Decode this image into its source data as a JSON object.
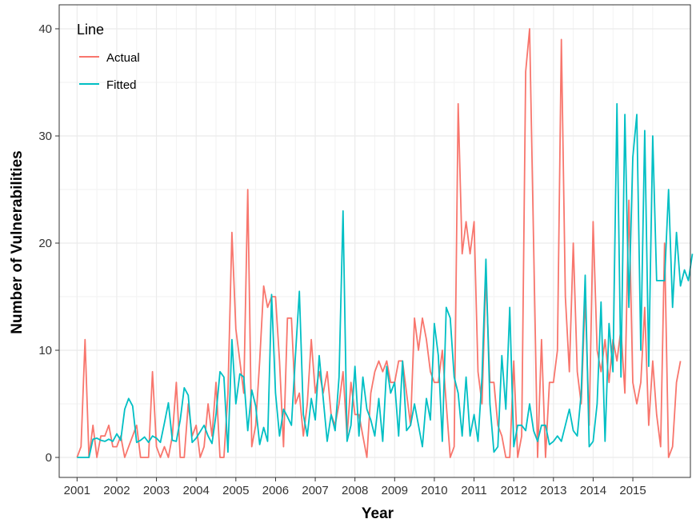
{
  "chart_data": {
    "type": "line",
    "title": "",
    "xlabel": "Year",
    "ylabel": "Number of Vulnerabilities",
    "ylim": [
      0,
      40
    ],
    "xlim": [
      2000.55,
      2016.45
    ],
    "x_ticks": [
      2001,
      2002,
      2003,
      2004,
      2005,
      2006,
      2007,
      2008,
      2009,
      2010,
      2011,
      2012,
      2013,
      2014,
      2015
    ],
    "x_tick_labels": [
      "2001",
      "2002",
      "2003",
      "2004",
      "2005",
      "2006",
      "2007",
      "2008",
      "2009",
      "2010",
      "2011",
      "2012",
      "2013",
      "2014",
      "2015"
    ],
    "y_ticks": [
      0,
      10,
      20,
      30,
      40
    ],
    "y_tick_labels": [
      "0",
      "10",
      "20",
      "30",
      "40"
    ],
    "grid": true,
    "legend": {
      "title": "Line",
      "position": "top-left",
      "entries": [
        "Actual",
        "Fitted"
      ]
    },
    "series": [
      {
        "name": "Actual",
        "color": "#F8766D",
        "points": [
          [
            2001.0,
            0
          ],
          [
            2001.1,
            1
          ],
          [
            2001.2,
            11
          ],
          [
            2001.3,
            0
          ],
          [
            2001.4,
            3
          ],
          [
            2001.5,
            0
          ],
          [
            2001.6,
            2
          ],
          [
            2001.7,
            2
          ],
          [
            2001.8,
            3
          ],
          [
            2001.9,
            1
          ],
          [
            2002.0,
            1
          ],
          [
            2002.1,
            2
          ],
          [
            2002.2,
            0
          ],
          [
            2002.3,
            1
          ],
          [
            2002.4,
            2
          ],
          [
            2002.5,
            3
          ],
          [
            2002.6,
            0
          ],
          [
            2002.7,
            0
          ],
          [
            2002.8,
            0
          ],
          [
            2002.9,
            8
          ],
          [
            2003.0,
            1
          ],
          [
            2003.1,
            0
          ],
          [
            2003.2,
            1
          ],
          [
            2003.3,
            0
          ],
          [
            2003.4,
            2
          ],
          [
            2003.5,
            7
          ],
          [
            2003.6,
            0
          ],
          [
            2003.7,
            0
          ],
          [
            2003.8,
            5
          ],
          [
            2003.9,
            2
          ],
          [
            2004.0,
            3
          ],
          [
            2004.1,
            0
          ],
          [
            2004.2,
            1
          ],
          [
            2004.3,
            5
          ],
          [
            2004.4,
            2
          ],
          [
            2004.5,
            7
          ],
          [
            2004.6,
            0
          ],
          [
            2004.7,
            0
          ],
          [
            2004.8,
            6
          ],
          [
            2004.9,
            21
          ],
          [
            2005.0,
            12
          ],
          [
            2005.1,
            9
          ],
          [
            2005.2,
            6
          ],
          [
            2005.3,
            25
          ],
          [
            2005.4,
            1
          ],
          [
            2005.5,
            3
          ],
          [
            2005.6,
            9
          ],
          [
            2005.7,
            16
          ],
          [
            2005.8,
            14
          ],
          [
            2005.9,
            15
          ],
          [
            2006.0,
            15
          ],
          [
            2006.1,
            9
          ],
          [
            2006.2,
            1
          ],
          [
            2006.3,
            13
          ],
          [
            2006.4,
            13
          ],
          [
            2006.5,
            5
          ],
          [
            2006.6,
            6
          ],
          [
            2006.7,
            2
          ],
          [
            2006.8,
            5
          ],
          [
            2006.9,
            11
          ],
          [
            2007.0,
            6
          ],
          [
            2007.1,
            8
          ],
          [
            2007.2,
            6
          ],
          [
            2007.3,
            8
          ],
          [
            2007.4,
            4
          ],
          [
            2007.5,
            3
          ],
          [
            2007.6,
            5
          ],
          [
            2007.7,
            8
          ],
          [
            2007.8,
            2
          ],
          [
            2007.9,
            7
          ],
          [
            2008.0,
            4
          ],
          [
            2008.1,
            4
          ],
          [
            2008.2,
            2
          ],
          [
            2008.3,
            0
          ],
          [
            2008.4,
            6
          ],
          [
            2008.5,
            8
          ],
          [
            2008.6,
            9
          ],
          [
            2008.7,
            8
          ],
          [
            2008.8,
            9
          ],
          [
            2008.9,
            7
          ],
          [
            2009.0,
            7
          ],
          [
            2009.1,
            9
          ],
          [
            2009.2,
            9
          ],
          [
            2009.3,
            6
          ],
          [
            2009.4,
            3
          ],
          [
            2009.5,
            13
          ],
          [
            2009.6,
            10
          ],
          [
            2009.7,
            13
          ],
          [
            2009.8,
            11
          ],
          [
            2009.9,
            8
          ],
          [
            2010.0,
            7
          ],
          [
            2010.1,
            7
          ],
          [
            2010.2,
            10
          ],
          [
            2010.3,
            5
          ],
          [
            2010.4,
            0
          ],
          [
            2010.5,
            1
          ],
          [
            2010.6,
            33
          ],
          [
            2010.7,
            19
          ],
          [
            2010.8,
            22
          ],
          [
            2010.9,
            19
          ],
          [
            2011.0,
            22
          ],
          [
            2011.1,
            8
          ],
          [
            2011.2,
            5
          ],
          [
            2011.3,
            17
          ],
          [
            2011.4,
            7
          ],
          [
            2011.5,
            7
          ],
          [
            2011.6,
            3
          ],
          [
            2011.7,
            2
          ],
          [
            2011.8,
            0
          ],
          [
            2011.9,
            0
          ],
          [
            2012.0,
            9
          ],
          [
            2012.1,
            0
          ],
          [
            2012.2,
            2
          ],
          [
            2012.3,
            36
          ],
          [
            2012.4,
            40
          ],
          [
            2012.5,
            20
          ],
          [
            2012.6,
            0
          ],
          [
            2012.7,
            11
          ],
          [
            2012.8,
            0
          ],
          [
            2012.9,
            7
          ],
          [
            2013.0,
            7
          ],
          [
            2013.1,
            10
          ],
          [
            2013.2,
            39
          ],
          [
            2013.3,
            15
          ],
          [
            2013.4,
            8
          ],
          [
            2013.5,
            20
          ],
          [
            2013.6,
            8
          ],
          [
            2013.7,
            5
          ],
          [
            2013.8,
            15
          ],
          [
            2013.9,
            3
          ],
          [
            2014.0,
            22
          ],
          [
            2014.1,
            10
          ],
          [
            2014.2,
            8
          ],
          [
            2014.3,
            11
          ],
          [
            2014.4,
            7
          ],
          [
            2014.5,
            11
          ],
          [
            2014.6,
            9
          ],
          [
            2014.7,
            12
          ],
          [
            2014.8,
            6
          ],
          [
            2014.9,
            24
          ],
          [
            2015.0,
            7
          ],
          [
            2015.1,
            5
          ],
          [
            2015.2,
            7
          ],
          [
            2015.3,
            14
          ],
          [
            2015.4,
            3
          ],
          [
            2015.5,
            9
          ],
          [
            2015.6,
            4
          ],
          [
            2015.7,
            1
          ],
          [
            2015.8,
            20
          ],
          [
            2015.9,
            0
          ],
          [
            2016.0,
            1
          ],
          [
            2016.1,
            7
          ],
          [
            2016.2,
            9
          ]
        ]
      },
      {
        "name": "Fitted",
        "color": "#00BFC4",
        "points": [
          [
            2001.0,
            0
          ],
          [
            2001.1,
            0
          ],
          [
            2001.2,
            0
          ],
          [
            2001.3,
            0
          ],
          [
            2001.4,
            1.7
          ],
          [
            2001.5,
            1.8
          ],
          [
            2001.6,
            1.6
          ],
          [
            2001.7,
            1.5
          ],
          [
            2001.8,
            1.7
          ],
          [
            2001.9,
            1.5
          ],
          [
            2002.0,
            2.2
          ],
          [
            2002.1,
            1.6
          ],
          [
            2002.2,
            4.5
          ],
          [
            2002.3,
            5.5
          ],
          [
            2002.4,
            4.8
          ],
          [
            2002.5,
            1.4
          ],
          [
            2002.6,
            1.6
          ],
          [
            2002.7,
            1.9
          ],
          [
            2002.8,
            1.4
          ],
          [
            2002.9,
            2.0
          ],
          [
            2003.0,
            1.8
          ],
          [
            2003.1,
            1.4
          ],
          [
            2003.2,
            3.2
          ],
          [
            2003.3,
            5.1
          ],
          [
            2003.4,
            1.6
          ],
          [
            2003.5,
            1.5
          ],
          [
            2003.6,
            3.5
          ],
          [
            2003.7,
            6.5
          ],
          [
            2003.8,
            5.8
          ],
          [
            2003.9,
            1.4
          ],
          [
            2004.0,
            1.8
          ],
          [
            2004.1,
            2.4
          ],
          [
            2004.2,
            3.0
          ],
          [
            2004.3,
            2.0
          ],
          [
            2004.4,
            1.3
          ],
          [
            2004.5,
            4.0
          ],
          [
            2004.6,
            8.0
          ],
          [
            2004.7,
            7.5
          ],
          [
            2004.8,
            0.5
          ],
          [
            2004.9,
            11.0
          ],
          [
            2005.0,
            5.0
          ],
          [
            2005.1,
            7.8
          ],
          [
            2005.2,
            7.5
          ],
          [
            2005.3,
            2.5
          ],
          [
            2005.4,
            6.3
          ],
          [
            2005.5,
            4.8
          ],
          [
            2005.6,
            1.2
          ],
          [
            2005.7,
            2.8
          ],
          [
            2005.8,
            1.5
          ],
          [
            2005.9,
            15.2
          ],
          [
            2006.0,
            6.0
          ],
          [
            2006.1,
            2.0
          ],
          [
            2006.2,
            4.5
          ],
          [
            2006.3,
            3.8
          ],
          [
            2006.4,
            3.0
          ],
          [
            2006.5,
            9.5
          ],
          [
            2006.6,
            15.5
          ],
          [
            2006.7,
            4.0
          ],
          [
            2006.8,
            2.0
          ],
          [
            2006.9,
            5.5
          ],
          [
            2007.0,
            3.5
          ],
          [
            2007.1,
            9.5
          ],
          [
            2007.2,
            5.5
          ],
          [
            2007.3,
            1.5
          ],
          [
            2007.4,
            4.0
          ],
          [
            2007.5,
            2.5
          ],
          [
            2007.6,
            7.5
          ],
          [
            2007.7,
            23.0
          ],
          [
            2007.8,
            1.5
          ],
          [
            2007.9,
            3.0
          ],
          [
            2008.0,
            8.5
          ],
          [
            2008.1,
            2.0
          ],
          [
            2008.2,
            7.5
          ],
          [
            2008.3,
            4.5
          ],
          [
            2008.4,
            3.5
          ],
          [
            2008.5,
            2.0
          ],
          [
            2008.6,
            5.5
          ],
          [
            2008.7,
            1.5
          ],
          [
            2008.8,
            8.5
          ],
          [
            2008.9,
            6.0
          ],
          [
            2009.0,
            7.0
          ],
          [
            2009.1,
            2.0
          ],
          [
            2009.2,
            9.0
          ],
          [
            2009.3,
            2.5
          ],
          [
            2009.4,
            3.0
          ],
          [
            2009.5,
            5.0
          ],
          [
            2009.6,
            3.0
          ],
          [
            2009.7,
            1.0
          ],
          [
            2009.8,
            5.5
          ],
          [
            2009.9,
            3.5
          ],
          [
            2010.0,
            12.5
          ],
          [
            2010.1,
            9.5
          ],
          [
            2010.2,
            1.5
          ],
          [
            2010.3,
            14.0
          ],
          [
            2010.4,
            13.0
          ],
          [
            2010.5,
            7.5
          ],
          [
            2010.6,
            6.0
          ],
          [
            2010.7,
            2.0
          ],
          [
            2010.8,
            7.5
          ],
          [
            2010.9,
            2.0
          ],
          [
            2011.0,
            4.0
          ],
          [
            2011.1,
            1.5
          ],
          [
            2011.2,
            7.5
          ],
          [
            2011.3,
            18.5
          ],
          [
            2011.4,
            5.0
          ],
          [
            2011.5,
            0.5
          ],
          [
            2011.6,
            1.0
          ],
          [
            2011.7,
            9.5
          ],
          [
            2011.8,
            4.5
          ],
          [
            2011.9,
            14.0
          ],
          [
            2012.0,
            1.0
          ],
          [
            2012.1,
            3.0
          ],
          [
            2012.2,
            3.0
          ],
          [
            2012.3,
            2.5
          ],
          [
            2012.4,
            5.0
          ],
          [
            2012.5,
            2.5
          ],
          [
            2012.6,
            1.5
          ],
          [
            2012.7,
            3.0
          ],
          [
            2012.8,
            3.0
          ],
          [
            2012.9,
            1.2
          ],
          [
            2013.0,
            1.5
          ],
          [
            2013.1,
            2.0
          ],
          [
            2013.2,
            1.5
          ],
          [
            2013.3,
            3.0
          ],
          [
            2013.4,
            4.5
          ],
          [
            2013.5,
            2.5
          ],
          [
            2013.6,
            2.0
          ],
          [
            2013.7,
            6.0
          ],
          [
            2013.8,
            17.0
          ],
          [
            2013.9,
            1.0
          ],
          [
            2014.0,
            1.5
          ],
          [
            2014.1,
            5.0
          ],
          [
            2014.2,
            14.5
          ],
          [
            2014.3,
            1.5
          ],
          [
            2014.4,
            12.5
          ],
          [
            2014.5,
            8.0
          ],
          [
            2014.6,
            33.0
          ],
          [
            2014.7,
            7.5
          ],
          [
            2014.8,
            32.0
          ],
          [
            2014.9,
            14.0
          ],
          [
            2015.0,
            28.0
          ],
          [
            2015.1,
            32.0
          ],
          [
            2015.2,
            10.0
          ],
          [
            2015.3,
            30.5
          ],
          [
            2015.4,
            8.5
          ],
          [
            2015.5,
            30.0
          ],
          [
            2015.6,
            16.5
          ],
          [
            2015.7,
            16.5
          ],
          [
            2015.8,
            16.5
          ],
          [
            2015.9,
            25.0
          ],
          [
            2016.0,
            14.0
          ],
          [
            2016.1,
            21.0
          ],
          [
            2016.2,
            16.0
          ],
          [
            2016.3,
            17.5
          ],
          [
            2016.4,
            16.5
          ],
          [
            2016.5,
            19.0
          ]
        ]
      }
    ]
  }
}
